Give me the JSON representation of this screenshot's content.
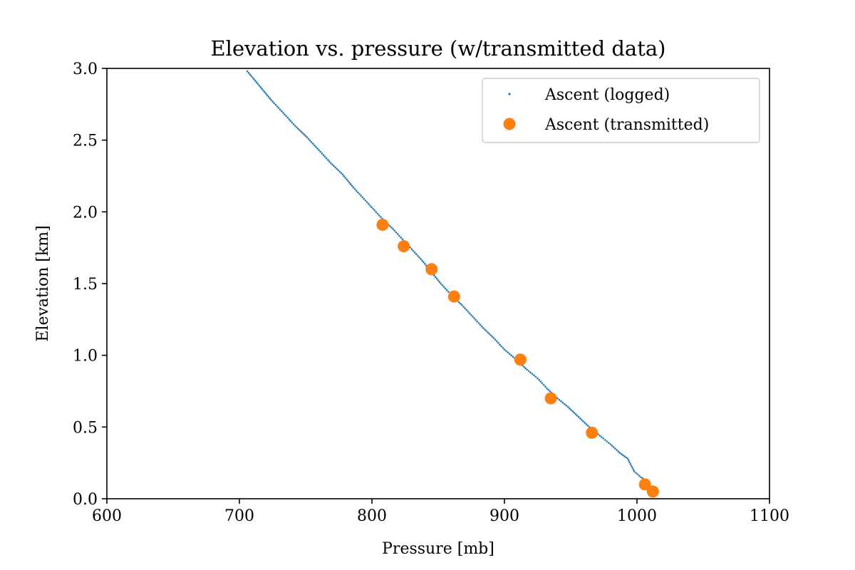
{
  "chart_data": {
    "type": "scatter",
    "title": "Elevation vs. pressure (w/transmitted data)",
    "xlabel": "Pressure [mb]",
    "ylabel": "Elevation [km]",
    "xlim": [
      600,
      1100
    ],
    "ylim": [
      0.0,
      3.0
    ],
    "x_ticks": [
      600,
      700,
      800,
      900,
      1000,
      1100
    ],
    "y_ticks": [
      0.0,
      0.5,
      1.0,
      1.5,
      2.0,
      2.5,
      3.0
    ],
    "x_tick_labels": [
      "600",
      "700",
      "800",
      "900",
      "1000",
      "1100"
    ],
    "y_tick_labels": [
      "0.0",
      "0.5",
      "1.0",
      "1.5",
      "2.0",
      "2.5",
      "3.0"
    ],
    "grid": false,
    "legend_position": "top-right",
    "series": [
      {
        "name": "Ascent (logged)",
        "marker": "small-dot",
        "color": "#1f77b4",
        "x": [
          1012,
          1008,
          1003,
          998,
          993,
          987,
          980,
          972,
          964,
          956,
          948,
          940,
          932,
          925,
          917,
          909,
          900,
          892,
          884,
          876,
          868,
          860,
          852,
          845,
          838,
          830,
          823,
          816,
          809,
          802,
          794,
          786,
          778,
          769,
          760,
          751,
          742,
          733,
          724,
          715,
          706
        ],
        "y": [
          0.05,
          0.12,
          0.15,
          0.19,
          0.28,
          0.32,
          0.38,
          0.44,
          0.5,
          0.57,
          0.64,
          0.7,
          0.77,
          0.84,
          0.9,
          0.97,
          1.04,
          1.12,
          1.19,
          1.27,
          1.35,
          1.42,
          1.5,
          1.58,
          1.66,
          1.74,
          1.81,
          1.88,
          1.94,
          2.01,
          2.09,
          2.17,
          2.26,
          2.34,
          2.43,
          2.52,
          2.6,
          2.69,
          2.78,
          2.88,
          2.98
        ]
      },
      {
        "name": "Ascent (transmitted)",
        "marker": "circle",
        "color": "#ff7f0e",
        "x": [
          1012,
          1006,
          966,
          935,
          912,
          862,
          845,
          824,
          808
        ],
        "y": [
          0.05,
          0.1,
          0.46,
          0.7,
          0.97,
          1.41,
          1.6,
          1.76,
          1.91
        ]
      }
    ]
  }
}
